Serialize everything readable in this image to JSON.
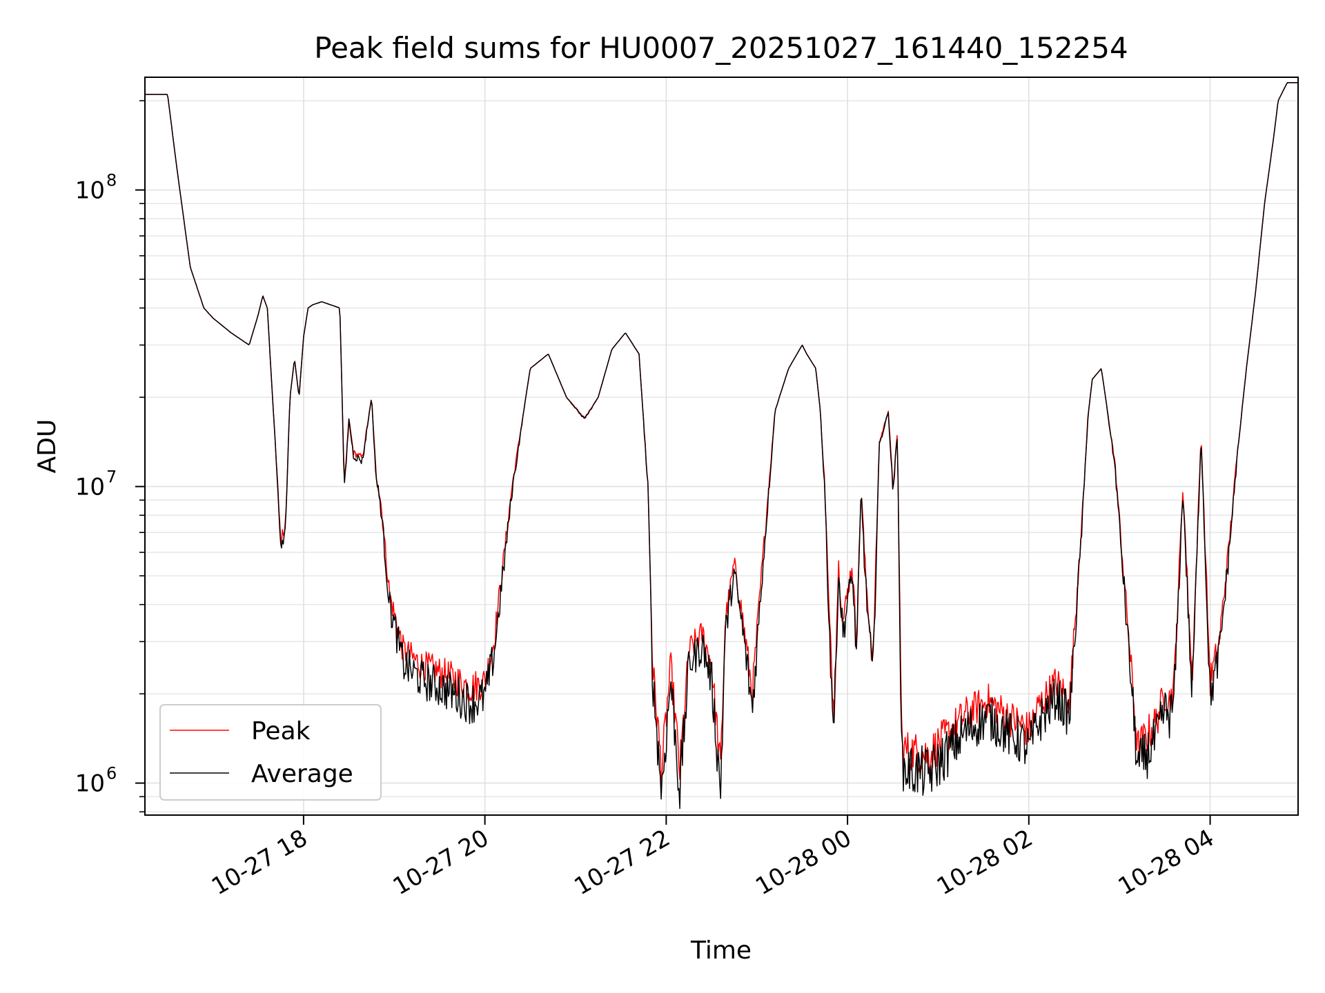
{
  "chart_data": {
    "type": "line",
    "title": "Peak field sums for HU0007_20251027_161440_152254",
    "xlabel": "Time",
    "ylabel": "ADU",
    "yscale": "log",
    "ylim": [
      780000,
      240000000
    ],
    "xlim_hours": [
      16.25,
      28.97
    ],
    "grid": true,
    "legend_position": "lower-left",
    "x_ticks": [
      {
        "hours": 18,
        "label": "10-27 18"
      },
      {
        "hours": 20,
        "label": "10-27 20"
      },
      {
        "hours": 22,
        "label": "10-27 22"
      },
      {
        "hours": 24,
        "label": "10-28 00"
      },
      {
        "hours": 26,
        "label": "10-28 02"
      },
      {
        "hours": 28,
        "label": "10-28 04"
      }
    ],
    "y_ticks": [
      {
        "value": 1000000,
        "base": "10",
        "exp": "6"
      },
      {
        "value": 10000000,
        "base": "10",
        "exp": "7"
      },
      {
        "value": 100000000,
        "base": "10",
        "exp": "8"
      }
    ],
    "series": [
      {
        "name": "Peak",
        "color": "#ff0000",
        "noise": 0.07,
        "ratio": 1.0
      },
      {
        "name": "Average",
        "color": "#000000",
        "noise": 0.09,
        "ratio": 0.86
      }
    ],
    "trace_hours": [
      16.25,
      16.5,
      16.6,
      16.75,
      16.9,
      17.0,
      17.2,
      17.4,
      17.5,
      17.55,
      17.6,
      17.7,
      17.75,
      17.8,
      17.85,
      17.9,
      17.95,
      18.0,
      18.05,
      18.1,
      18.2,
      18.4,
      18.45,
      18.5,
      18.55,
      18.65,
      18.75,
      18.8,
      18.85,
      18.95,
      19.1,
      19.3,
      19.6,
      19.85,
      20.0,
      20.1,
      20.3,
      20.5,
      20.7,
      20.9,
      21.1,
      21.25,
      21.4,
      21.55,
      21.7,
      21.8,
      21.85,
      21.95,
      22.05,
      22.15,
      22.25,
      22.4,
      22.5,
      22.6,
      22.65,
      22.75,
      22.85,
      22.95,
      23.05,
      23.2,
      23.35,
      23.5,
      23.55,
      23.65,
      23.7,
      23.75,
      23.8,
      23.85,
      23.9,
      23.95,
      24.05,
      24.1,
      24.15,
      24.2,
      24.28,
      24.35,
      24.45,
      24.5,
      24.55,
      24.6,
      24.9,
      25.3,
      25.55,
      25.8,
      25.9,
      26.0,
      26.1,
      26.3,
      26.45,
      26.6,
      26.65,
      26.7,
      26.8,
      26.95,
      27.2,
      27.4,
      27.5,
      27.55,
      27.6,
      27.7,
      27.8,
      27.9,
      28.0,
      28.1,
      28.2,
      28.3,
      28.4,
      28.5,
      28.6,
      28.7,
      28.75,
      28.85,
      28.97
    ],
    "trace_adu": [
      210000000,
      210000000,
      120000000,
      55000000,
      40000000,
      37000000,
      33000000,
      30000000,
      38000000,
      44000000,
      40000000,
      12000000,
      6500000,
      7500000,
      20000000,
      27000000,
      20000000,
      32000000,
      40000000,
      41000000,
      42000000,
      40000000,
      10000000,
      17000000,
      13000000,
      12500000,
      20000000,
      11000000,
      9000000,
      4300000,
      2800000,
      2500000,
      2300000,
      2100000,
      2200000,
      3000000,
      10000000,
      25000000,
      28000000,
      20000000,
      17000000,
      20000000,
      29000000,
      33000000,
      28000000,
      10000000,
      2500000,
      1100000,
      2500000,
      1100000,
      2800000,
      3200000,
      2500000,
      1100000,
      3500000,
      5500000,
      3500000,
      2000000,
      5000000,
      18000000,
      25000000,
      30000000,
      28000000,
      25000000,
      18000000,
      10000000,
      3500000,
      1700000,
      5500000,
      3500000,
      5500000,
      3000000,
      10000000,
      5000000,
      2500000,
      14000000,
      18000000,
      10000000,
      15000000,
      1300000,
      1250000,
      1700000,
      1900000,
      1650000,
      1600000,
      1500000,
      1800000,
      2200000,
      1900000,
      9000000,
      17000000,
      23000000,
      25000000,
      12000000,
      1300000,
      1600000,
      2000000,
      1900000,
      2100000,
      10000000,
      2200000,
      15000000,
      2200000,
      3000000,
      6000000,
      13000000,
      25000000,
      45000000,
      90000000,
      150000000,
      200000000,
      230000000,
      230000000
    ]
  }
}
